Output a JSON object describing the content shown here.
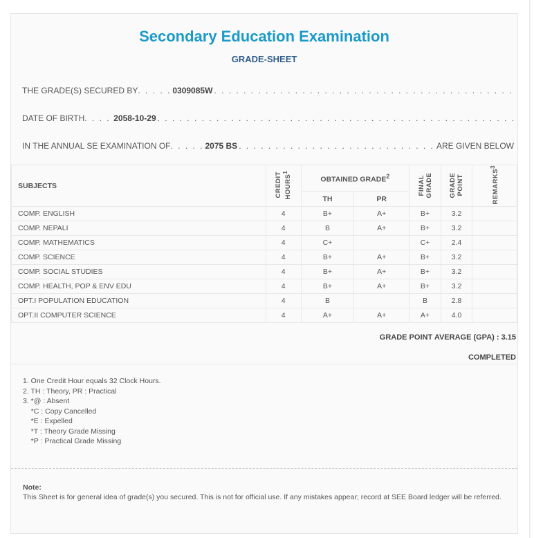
{
  "title": "Secondary Education Examination",
  "subtitle": "GRADE-SHEET",
  "info": {
    "secured_by_label": "THE GRADE(S) SECURED BY",
    "secured_by_value": "0309085W",
    "dob_label": "DATE OF BIRTH",
    "dob_value": "2058-10-29",
    "exam_label": "IN THE ANNUAL SE EXAMINATION OF",
    "exam_value": "2075 BS",
    "exam_suffix": "ARE GIVEN BELOW"
  },
  "table": {
    "headers": {
      "subjects": "SUBJECTS",
      "credit_hours": "CREDIT HOURS",
      "credit_sup": "1",
      "obtained_grade": "OBTAINED GRADE",
      "obtained_sup": "2",
      "th": "TH",
      "pr": "PR",
      "final_grade": "FINAL GRADE",
      "grade_point": "GRADE POINT",
      "remarks": "REMARKS",
      "remarks_sup": "3"
    },
    "rows": [
      {
        "subject": "COMP. ENGLISH",
        "credit": "4",
        "th": "B+",
        "pr": "A+",
        "final": "B+",
        "gp": "3.2",
        "remarks": ""
      },
      {
        "subject": "COMP. NEPALI",
        "credit": "4",
        "th": "B",
        "pr": "A+",
        "final": "B+",
        "gp": "3.2",
        "remarks": ""
      },
      {
        "subject": "COMP. MATHEMATICS",
        "credit": "4",
        "th": "C+",
        "pr": "",
        "final": "C+",
        "gp": "2.4",
        "remarks": ""
      },
      {
        "subject": "COMP. SCIENCE",
        "credit": "4",
        "th": "B+",
        "pr": "A+",
        "final": "B+",
        "gp": "3.2",
        "remarks": ""
      },
      {
        "subject": "COMP. SOCIAL STUDIES",
        "credit": "4",
        "th": "B+",
        "pr": "A+",
        "final": "B+",
        "gp": "3.2",
        "remarks": ""
      },
      {
        "subject": "COMP. HEALTH, POP & ENV EDU",
        "credit": "4",
        "th": "B+",
        "pr": "A+",
        "final": "B+",
        "gp": "3.2",
        "remarks": ""
      },
      {
        "subject": "OPT.I POPULATION EDUCATION",
        "credit": "4",
        "th": "B",
        "pr": "",
        "final": "B",
        "gp": "2.8",
        "remarks": ""
      },
      {
        "subject": "OPT.II COMPUTER SCIENCE",
        "credit": "4",
        "th": "A+",
        "pr": "A+",
        "final": "A+",
        "gp": "4.0",
        "remarks": ""
      }
    ]
  },
  "gpa": "GRADE POINT AVERAGE (GPA) : 3.15",
  "status": "COMPLETED",
  "notes": [
    "1. One Credit Hour equals 32 Clock Hours.",
    "2. TH : Theory, PR : Practical",
    "3. *@ : Absent",
    "    *C : Copy Cancelled",
    "    *E : Expelled",
    "    *T : Theory Grade Missing",
    "    *P : Practical Grade Missing"
  ],
  "note_label": "Note:",
  "note_text": "This Sheet is for general idea of grade(s) you secured. This is not for official use. If any mistakes appear; record at SEE Board ledger will be referred."
}
